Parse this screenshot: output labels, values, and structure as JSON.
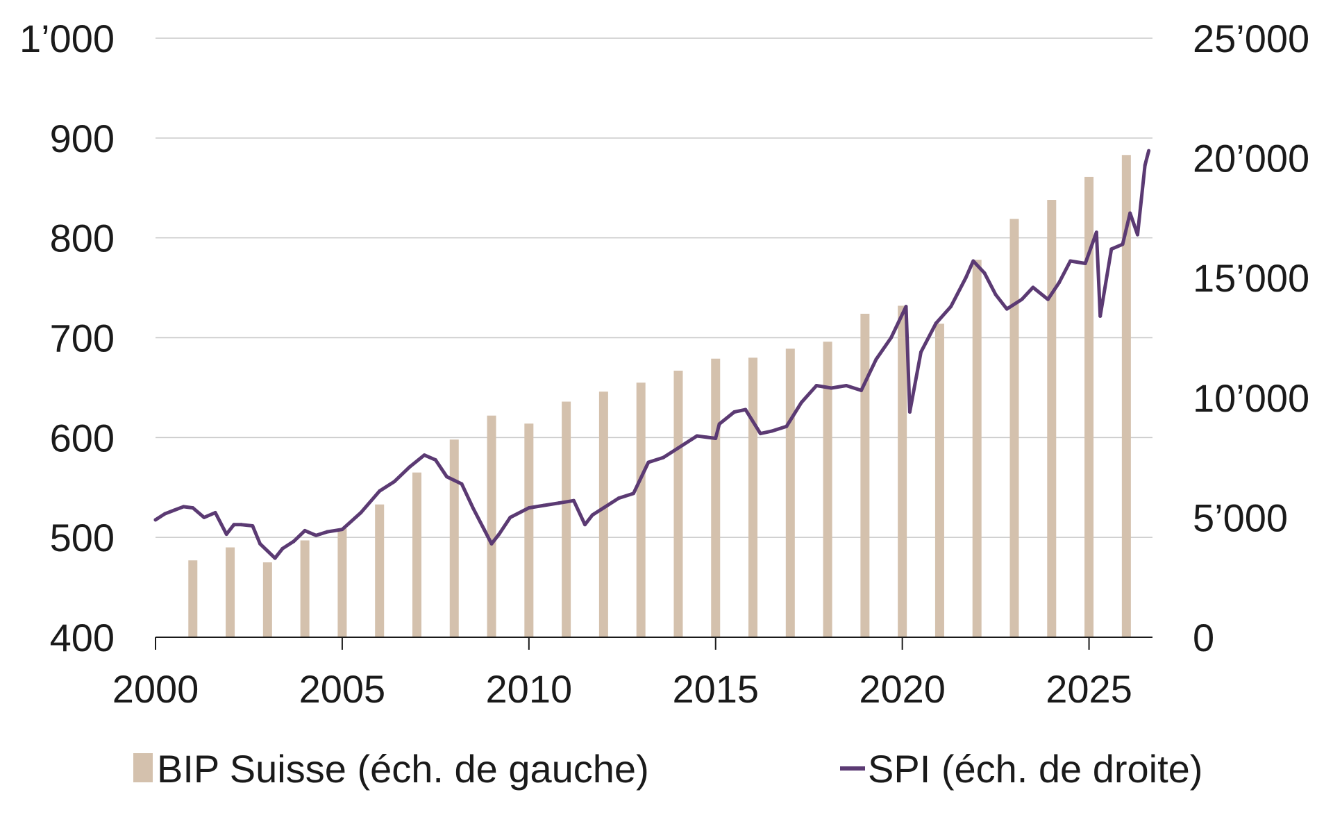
{
  "chart_data": {
    "type": "bar+line",
    "title": "",
    "xlabel": "",
    "xlim": [
      2000,
      2026.7
    ],
    "x_ticks": [
      "2000",
      "2005",
      "2010",
      "2015",
      "2020",
      "2025"
    ],
    "y_left": {
      "ylabel": "",
      "ylim": [
        400,
        1000
      ],
      "ticks": [
        "400",
        "500",
        "600",
        "700",
        "800",
        "900",
        "1’000"
      ]
    },
    "y_right": {
      "ylabel": "",
      "ylim": [
        0,
        25000
      ],
      "ticks": [
        "0",
        "5’000",
        "10’000",
        "15’000",
        "20’000",
        "25’000"
      ]
    },
    "grid": "horizontal",
    "legend_position": "bottom",
    "series": [
      {
        "name": "BIP Suisse (éch. de gauche)",
        "type": "bar",
        "axis": "left",
        "color": "#d4c1ad",
        "x": [
          2001,
          2002,
          2003,
          2004,
          2005,
          2006,
          2007,
          2008,
          2009,
          2010,
          2011,
          2012,
          2013,
          2014,
          2015,
          2016,
          2017,
          2018,
          2019,
          2020,
          2021,
          2022,
          2023,
          2024,
          2025,
          2026
        ],
        "values": [
          477,
          490,
          475,
          497,
          509,
          533,
          565,
          598,
          622,
          614,
          636,
          646,
          655,
          667,
          679,
          680,
          689,
          696,
          724,
          732,
          714,
          778,
          819,
          838,
          861,
          883
        ]
      },
      {
        "name": "SPI (éch. de droite)",
        "type": "line",
        "axis": "right",
        "color": "#5b3a73",
        "x": [
          2000.0,
          2000.25,
          2000.5,
          2000.75,
          2001.0,
          2001.3,
          2001.6,
          2001.9,
          2002.1,
          2002.3,
          2002.6,
          2002.8,
          2003.0,
          2003.2,
          2003.4,
          2003.7,
          2004.0,
          2004.3,
          2004.6,
          2005.0,
          2005.5,
          2006.0,
          2006.4,
          2006.8,
          2007.2,
          2007.5,
          2007.8,
          2008.2,
          2008.5,
          2008.8,
          2009.0,
          2009.2,
          2009.5,
          2010.0,
          2010.4,
          2010.8,
          2011.2,
          2011.5,
          2011.7,
          2012.0,
          2012.4,
          2012.8,
          2013.2,
          2013.6,
          2014.0,
          2014.5,
          2015.0,
          2015.1,
          2015.5,
          2015.8,
          2016.2,
          2016.5,
          2016.9,
          2017.3,
          2017.7,
          2018.1,
          2018.5,
          2018.9,
          2019.3,
          2019.7,
          2020.1,
          2020.2,
          2020.5,
          2020.9,
          2021.3,
          2021.7,
          2021.9,
          2022.2,
          2022.5,
          2022.8,
          2023.2,
          2023.5,
          2023.9,
          2024.2,
          2024.5,
          2024.9,
          2025.2,
          2025.3,
          2025.6,
          2025.9,
          2026.1,
          2026.3,
          2026.5,
          2026.6
        ],
        "values": [
          4900,
          5150,
          5300,
          5450,
          5400,
          5000,
          5200,
          4300,
          4700,
          4700,
          4650,
          3900,
          3600,
          3300,
          3700,
          4000,
          4450,
          4250,
          4400,
          4500,
          5200,
          6100,
          6500,
          7100,
          7600,
          7400,
          6700,
          6400,
          5400,
          4500,
          3900,
          4300,
          5000,
          5400,
          5500,
          5600,
          5700,
          4700,
          5100,
          5400,
          5800,
          6000,
          7300,
          7500,
          7900,
          8400,
          8300,
          8900,
          9400,
          9500,
          8500,
          8600,
          8800,
          9800,
          10500,
          10400,
          10500,
          10300,
          11600,
          12500,
          13800,
          9400,
          11900,
          13100,
          13800,
          15000,
          15700,
          15200,
          14300,
          13700,
          14100,
          14600,
          14100,
          14800,
          15700,
          15600,
          16900,
          13400,
          16200,
          16400,
          17700,
          16800,
          19700,
          20300
        ]
      }
    ]
  }
}
